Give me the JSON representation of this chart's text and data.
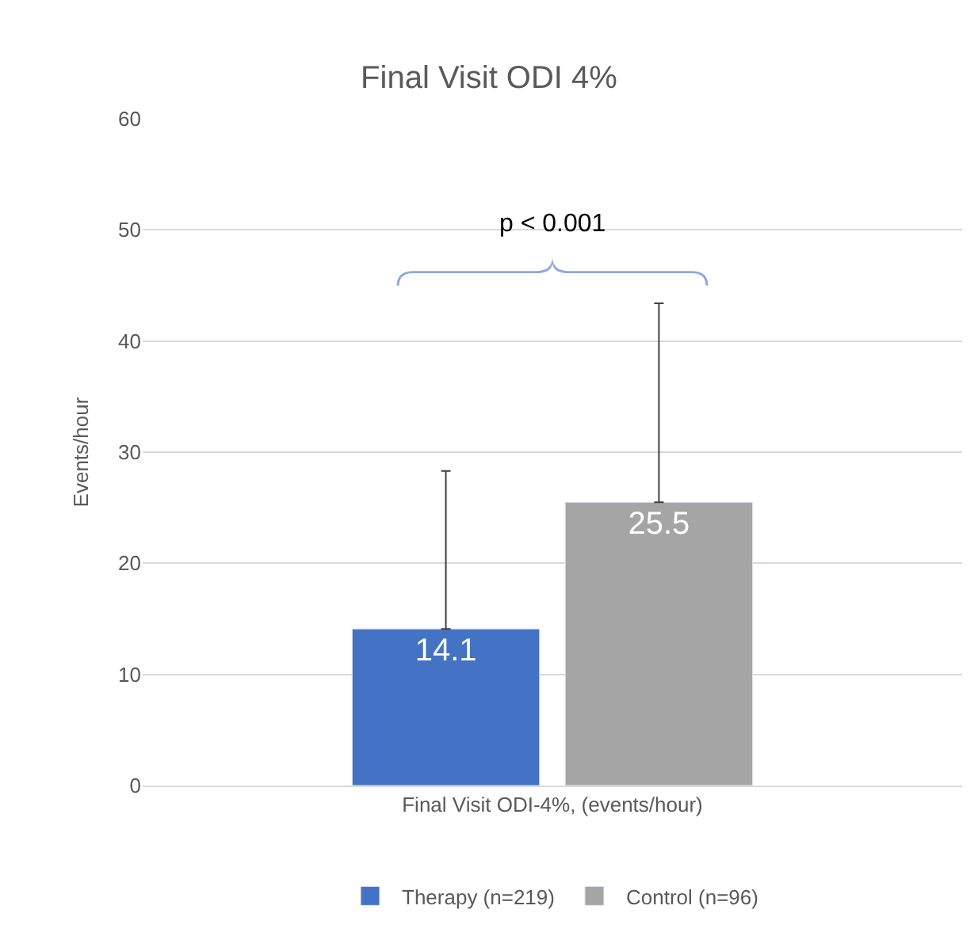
{
  "chart_data": {
    "type": "bar",
    "title": "Final Visit ODI 4%",
    "ylabel": "Events/hour",
    "categories": [
      "Final Visit ODI-4%, (events/hour)"
    ],
    "series": [
      {
        "name": "Therapy (n=219)",
        "color": "#4472c4",
        "values": [
          14.1
        ],
        "errors": [
          [
            14.1,
            28.3
          ]
        ]
      },
      {
        "name": "Control (n=96)",
        "color": "#a5a5a5",
        "values": [
          25.5
        ],
        "errors": [
          [
            25.5,
            43.4
          ]
        ]
      }
    ],
    "ylim": [
      0,
      60
    ],
    "yticks": [
      0,
      10,
      20,
      30,
      40,
      50,
      60
    ],
    "grid": "y",
    "legend": "bottom",
    "data_labels": true,
    "annotations": [
      "p < 0.001"
    ]
  }
}
